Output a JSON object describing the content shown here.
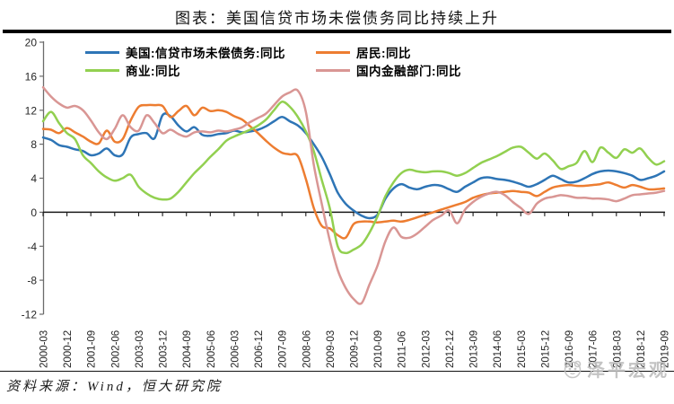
{
  "title": "图表：美国信贷市场未偿债务同比持续上升",
  "source_note": "资料来源：Wind，恒大研究院",
  "watermark": "泽平宏观",
  "colors": {
    "us_total": "#2E75B6",
    "households": "#ED7D31",
    "business": "#92D050",
    "financial": "#D99694",
    "zero_axis": "#1a1a1a",
    "y_axis": "#6b6b6b",
    "watermark": "#bdbdbd"
  },
  "chart_data": {
    "type": "line",
    "title": "图表：美国信贷市场未偿债务同比持续上升",
    "xlabel": "",
    "ylabel": "",
    "ylim": [
      -12,
      20
    ],
    "y_ticks": [
      20,
      16,
      12,
      8,
      4,
      0,
      -4,
      -8,
      -12
    ],
    "grid": false,
    "legend_position": "top-inside",
    "x_frequency": "quarterly",
    "x_labels": [
      "2000-03",
      "2000-12",
      "2001-09",
      "2002-06",
      "2003-03",
      "2003-12",
      "2004-09",
      "2005-06",
      "2006-03",
      "2006-12",
      "2007-09",
      "2008-06",
      "2009-03",
      "2009-12",
      "2010-09",
      "2011-06",
      "2012-03",
      "2012-12",
      "2013-09",
      "2014-06",
      "2015-03",
      "2015-12",
      "2016-09",
      "2017-06",
      "2018-03",
      "2018-12",
      "2019-09"
    ],
    "quarters_per_label": 3,
    "series": [
      {
        "name": "美国:信贷市场未偿债务:同比",
        "color": "#2E75B6",
        "values": [
          8.8,
          8.5,
          7.9,
          7.7,
          7.4,
          7.2,
          6.7,
          6.9,
          7.5,
          6.7,
          6.8,
          8.8,
          9.2,
          9.3,
          8.7,
          11.4,
          11.3,
          10.2,
          9.5,
          10.0,
          9.1,
          9.0,
          9.2,
          9.3,
          9.6,
          9.4,
          9.5,
          9.7,
          10.1,
          10.7,
          11.2,
          10.7,
          10.2,
          9.3,
          8.0,
          6.5,
          4.5,
          2.3,
          1.0,
          0.2,
          -0.4,
          -0.7,
          -0.3,
          1.6,
          2.8,
          3.3,
          2.9,
          2.7,
          3.0,
          3.2,
          3.1,
          2.7,
          2.4,
          3.0,
          3.5,
          4.0,
          4.1,
          3.9,
          3.8,
          3.6,
          3.3,
          3.0,
          3.3,
          3.8,
          4.3,
          3.9,
          3.5,
          3.6,
          4.0,
          4.5,
          4.8,
          4.9,
          4.8,
          4.6,
          4.3,
          3.8,
          4.0,
          4.3,
          4.8
        ]
      },
      {
        "name": "居民:同比",
        "color": "#ED7D31",
        "values": [
          9.8,
          9.7,
          9.3,
          9.9,
          9.4,
          8.9,
          8.3,
          8.1,
          9.6,
          8.3,
          8.6,
          10.8,
          12.4,
          12.6,
          12.6,
          12.5,
          11.2,
          11.9,
          12.5,
          11.4,
          12.3,
          11.9,
          12.0,
          11.8,
          11.3,
          10.9,
          10.1,
          9.3,
          8.4,
          7.6,
          7.0,
          6.8,
          6.6,
          3.9,
          0.5,
          -1.6,
          -1.9,
          -2.7,
          -3.0,
          -1.4,
          -1.1,
          -1.1,
          -1.2,
          -1.1,
          -1.0,
          -1.1,
          -0.9,
          -0.6,
          -0.3,
          0.0,
          0.3,
          0.6,
          0.9,
          1.2,
          1.7,
          2.0,
          2.2,
          2.3,
          2.4,
          2.5,
          2.4,
          2.3,
          1.9,
          2.4,
          2.9,
          3.1,
          3.2,
          3.1,
          3.1,
          3.2,
          3.3,
          3.5,
          3.2,
          2.9,
          3.2,
          3.0,
          2.7,
          2.7,
          2.8
        ]
      },
      {
        "name": "商业:同比",
        "color": "#92D050",
        "values": [
          10.7,
          11.8,
          10.5,
          9.3,
          8.6,
          6.7,
          5.8,
          4.8,
          4.1,
          3.7,
          4.0,
          4.4,
          3.0,
          2.2,
          1.7,
          1.5,
          1.6,
          2.4,
          3.5,
          4.6,
          5.5,
          6.5,
          7.4,
          8.4,
          8.9,
          9.3,
          9.7,
          10.2,
          10.9,
          12.0,
          13.0,
          12.4,
          11.2,
          9.5,
          7.2,
          3.8,
          0.5,
          -4.0,
          -4.8,
          -4.4,
          -3.8,
          -2.4,
          -0.5,
          1.9,
          3.5,
          4.6,
          5.0,
          4.8,
          4.7,
          4.8,
          4.8,
          4.6,
          4.3,
          4.6,
          5.2,
          5.8,
          6.2,
          6.6,
          7.1,
          7.6,
          7.7,
          7.0,
          6.3,
          6.9,
          6.1,
          5.1,
          5.4,
          5.8,
          7.2,
          5.9,
          7.6,
          7.0,
          6.4,
          7.4,
          7.0,
          7.5,
          6.4,
          5.6,
          6.0
        ]
      },
      {
        "name": "国内金融部门:同比",
        "color": "#D99694",
        "values": [
          14.7,
          13.6,
          12.8,
          12.3,
          12.5,
          12.0,
          10.8,
          9.4,
          8.6,
          9.8,
          11.4,
          10.0,
          9.6,
          11.4,
          10.5,
          9.3,
          9.7,
          9.2,
          8.9,
          9.4,
          9.5,
          9.4,
          9.6,
          9.5,
          9.7,
          10.0,
          10.6,
          11.1,
          11.6,
          12.6,
          13.6,
          14.1,
          14.3,
          11.8,
          5.6,
          1.0,
          -3.3,
          -6.8,
          -8.9,
          -10.2,
          -10.7,
          -8.5,
          -6.3,
          -3.4,
          -1.8,
          -2.9,
          -3.0,
          -2.5,
          -1.7,
          -0.9,
          -0.4,
          0.2,
          -1.3,
          0.3,
          1.2,
          1.8,
          2.2,
          2.4,
          2.0,
          1.2,
          0.5,
          -0.2,
          1.0,
          1.6,
          1.8,
          2.0,
          1.9,
          1.7,
          1.7,
          1.6,
          1.6,
          1.5,
          1.3,
          1.6,
          2.0,
          2.1,
          2.2,
          2.3,
          2.5
        ]
      }
    ]
  }
}
